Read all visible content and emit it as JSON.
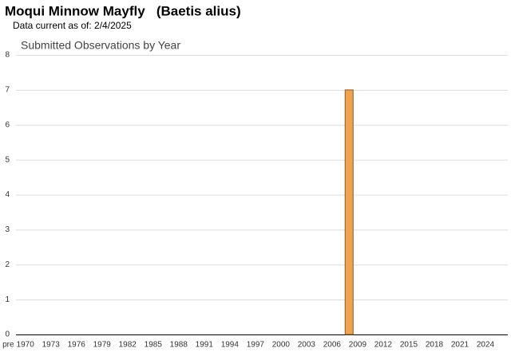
{
  "header": {
    "title": "Moqui Minnow Mayfly   (Baetis alius)",
    "subtitle": "Data current as of: 2/4/2025"
  },
  "chart_data": {
    "type": "bar",
    "title": "Submitted Observations by Year",
    "categories": [
      "pre",
      null,
      "1970",
      null,
      null,
      "1973",
      null,
      null,
      "1976",
      null,
      null,
      "1979",
      null,
      null,
      "1982",
      null,
      null,
      "1985",
      null,
      null,
      "1988",
      null,
      null,
      "1991",
      null,
      null,
      "1994",
      null,
      null,
      "1997",
      null,
      null,
      "2000",
      null,
      null,
      "2003",
      null,
      null,
      "2006",
      null,
      null,
      "2009",
      null,
      null,
      "2012",
      null,
      null,
      "2015",
      null,
      null,
      "2018",
      null,
      null,
      "2021",
      null,
      null,
      "2024",
      null
    ],
    "values": [
      0,
      0,
      0,
      0,
      0,
      0,
      0,
      0,
      0,
      0,
      0,
      0,
      0,
      0,
      0,
      0,
      0,
      0,
      0,
      0,
      0,
      0,
      0,
      0,
      0,
      0,
      0,
      0,
      0,
      0,
      0,
      0,
      0,
      0,
      0,
      0,
      0,
      0,
      0,
      0,
      7,
      0,
      0,
      0,
      0,
      0,
      0,
      0,
      0,
      0,
      0,
      0,
      0,
      0,
      0,
      0,
      0,
      0
    ],
    "color": "#f0a24e",
    "ylim": [
      0,
      8
    ],
    "yticks": [
      0,
      1,
      2,
      3,
      4,
      5,
      6,
      7,
      8
    ],
    "grid": true
  }
}
